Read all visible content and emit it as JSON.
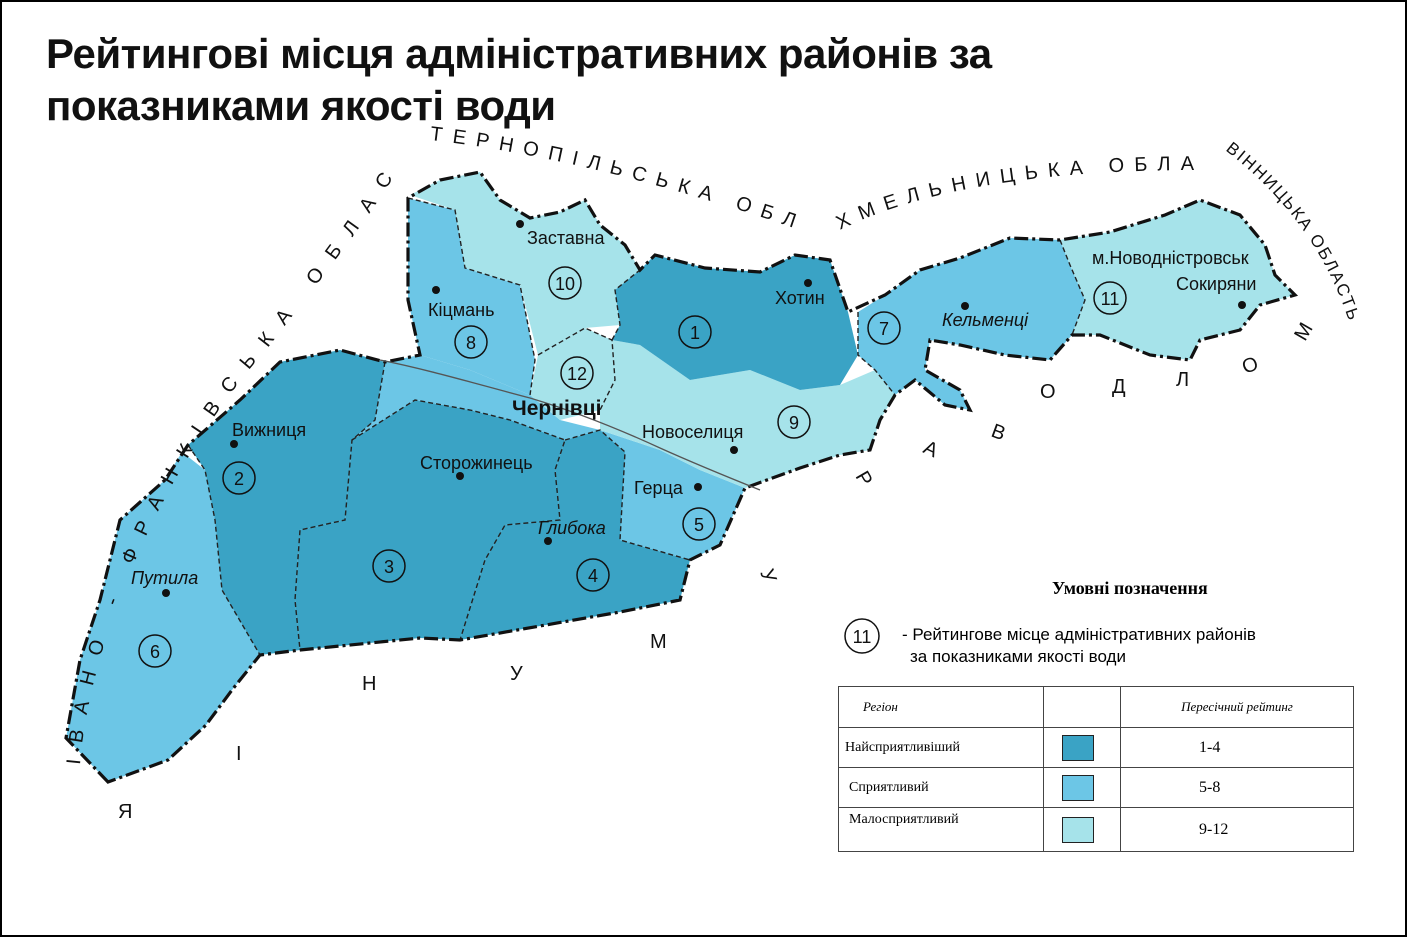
{
  "title": "Рейтингові місця адміністративних районів за показниками якості води",
  "colors": {
    "most_favorable": "#3aa3c5",
    "favorable": "#6cc6e6",
    "less_favorable": "#a6e3ea",
    "border": "#111111"
  },
  "neighbors": {
    "ternopil": "ТЕРНОПІЛЬСЬКА ОБЛАСТЬ",
    "khmelnytsk": "ХМЕЛЬНИЦЬКА ОБЛАСТЬ",
    "vinnytsia": "ВІННИЦЬКА ОБЛАСТЬ",
    "ivano_frankivsk_a": "ІВАНО - ФРАНКІВСЬКА ОБЛАСТЬ",
    "moldova": "МОЛДОВА",
    "romania": "РУМУНІЯ"
  },
  "districts": [
    {
      "rank": "1",
      "town": "Хотин",
      "category": "most_favorable"
    },
    {
      "rank": "2",
      "town": "Вижниця",
      "category": "most_favorable"
    },
    {
      "rank": "3",
      "town": "Сторожинець",
      "category": "most_favorable"
    },
    {
      "rank": "4",
      "town": "Глибока",
      "category": "most_favorable"
    },
    {
      "rank": "5",
      "town": "Герца",
      "category": "favorable"
    },
    {
      "rank": "6",
      "town": "Путила",
      "category": "favorable"
    },
    {
      "rank": "7",
      "town": "Кельменці",
      "category": "favorable"
    },
    {
      "rank": "8",
      "town": "Кіцмань",
      "category": "favorable"
    },
    {
      "rank": "9",
      "town": "Новоселиця",
      "category": "less_favorable"
    },
    {
      "rank": "10",
      "town": "Заставна",
      "category": "less_favorable"
    },
    {
      "rank": "11",
      "town": "Сокиряни",
      "category": "less_favorable"
    },
    {
      "rank": "12",
      "town": "",
      "category": "less_favorable"
    }
  ],
  "cities": {
    "chernivtsi": "Чернівці",
    "novodnistrovsk": "м.Новодністровськ"
  },
  "legend": {
    "title": "Умовні позначення",
    "symbol_example": "11",
    "symbol_text_1": "- Рейтингове місце адміністративних районів",
    "symbol_text_2": "за показниками якості води",
    "col_region": "Регіон",
    "col_rating": "Пересічний рейтинг",
    "rows": [
      {
        "label": "Найсприятливіший",
        "range": "1-4",
        "color": "#3aa3c5"
      },
      {
        "label": "Сприятливий",
        "range": "5-8",
        "color": "#6cc6e6"
      },
      {
        "label": "Малосприятливий",
        "range": "9-12",
        "color": "#a6e3ea"
      }
    ]
  }
}
